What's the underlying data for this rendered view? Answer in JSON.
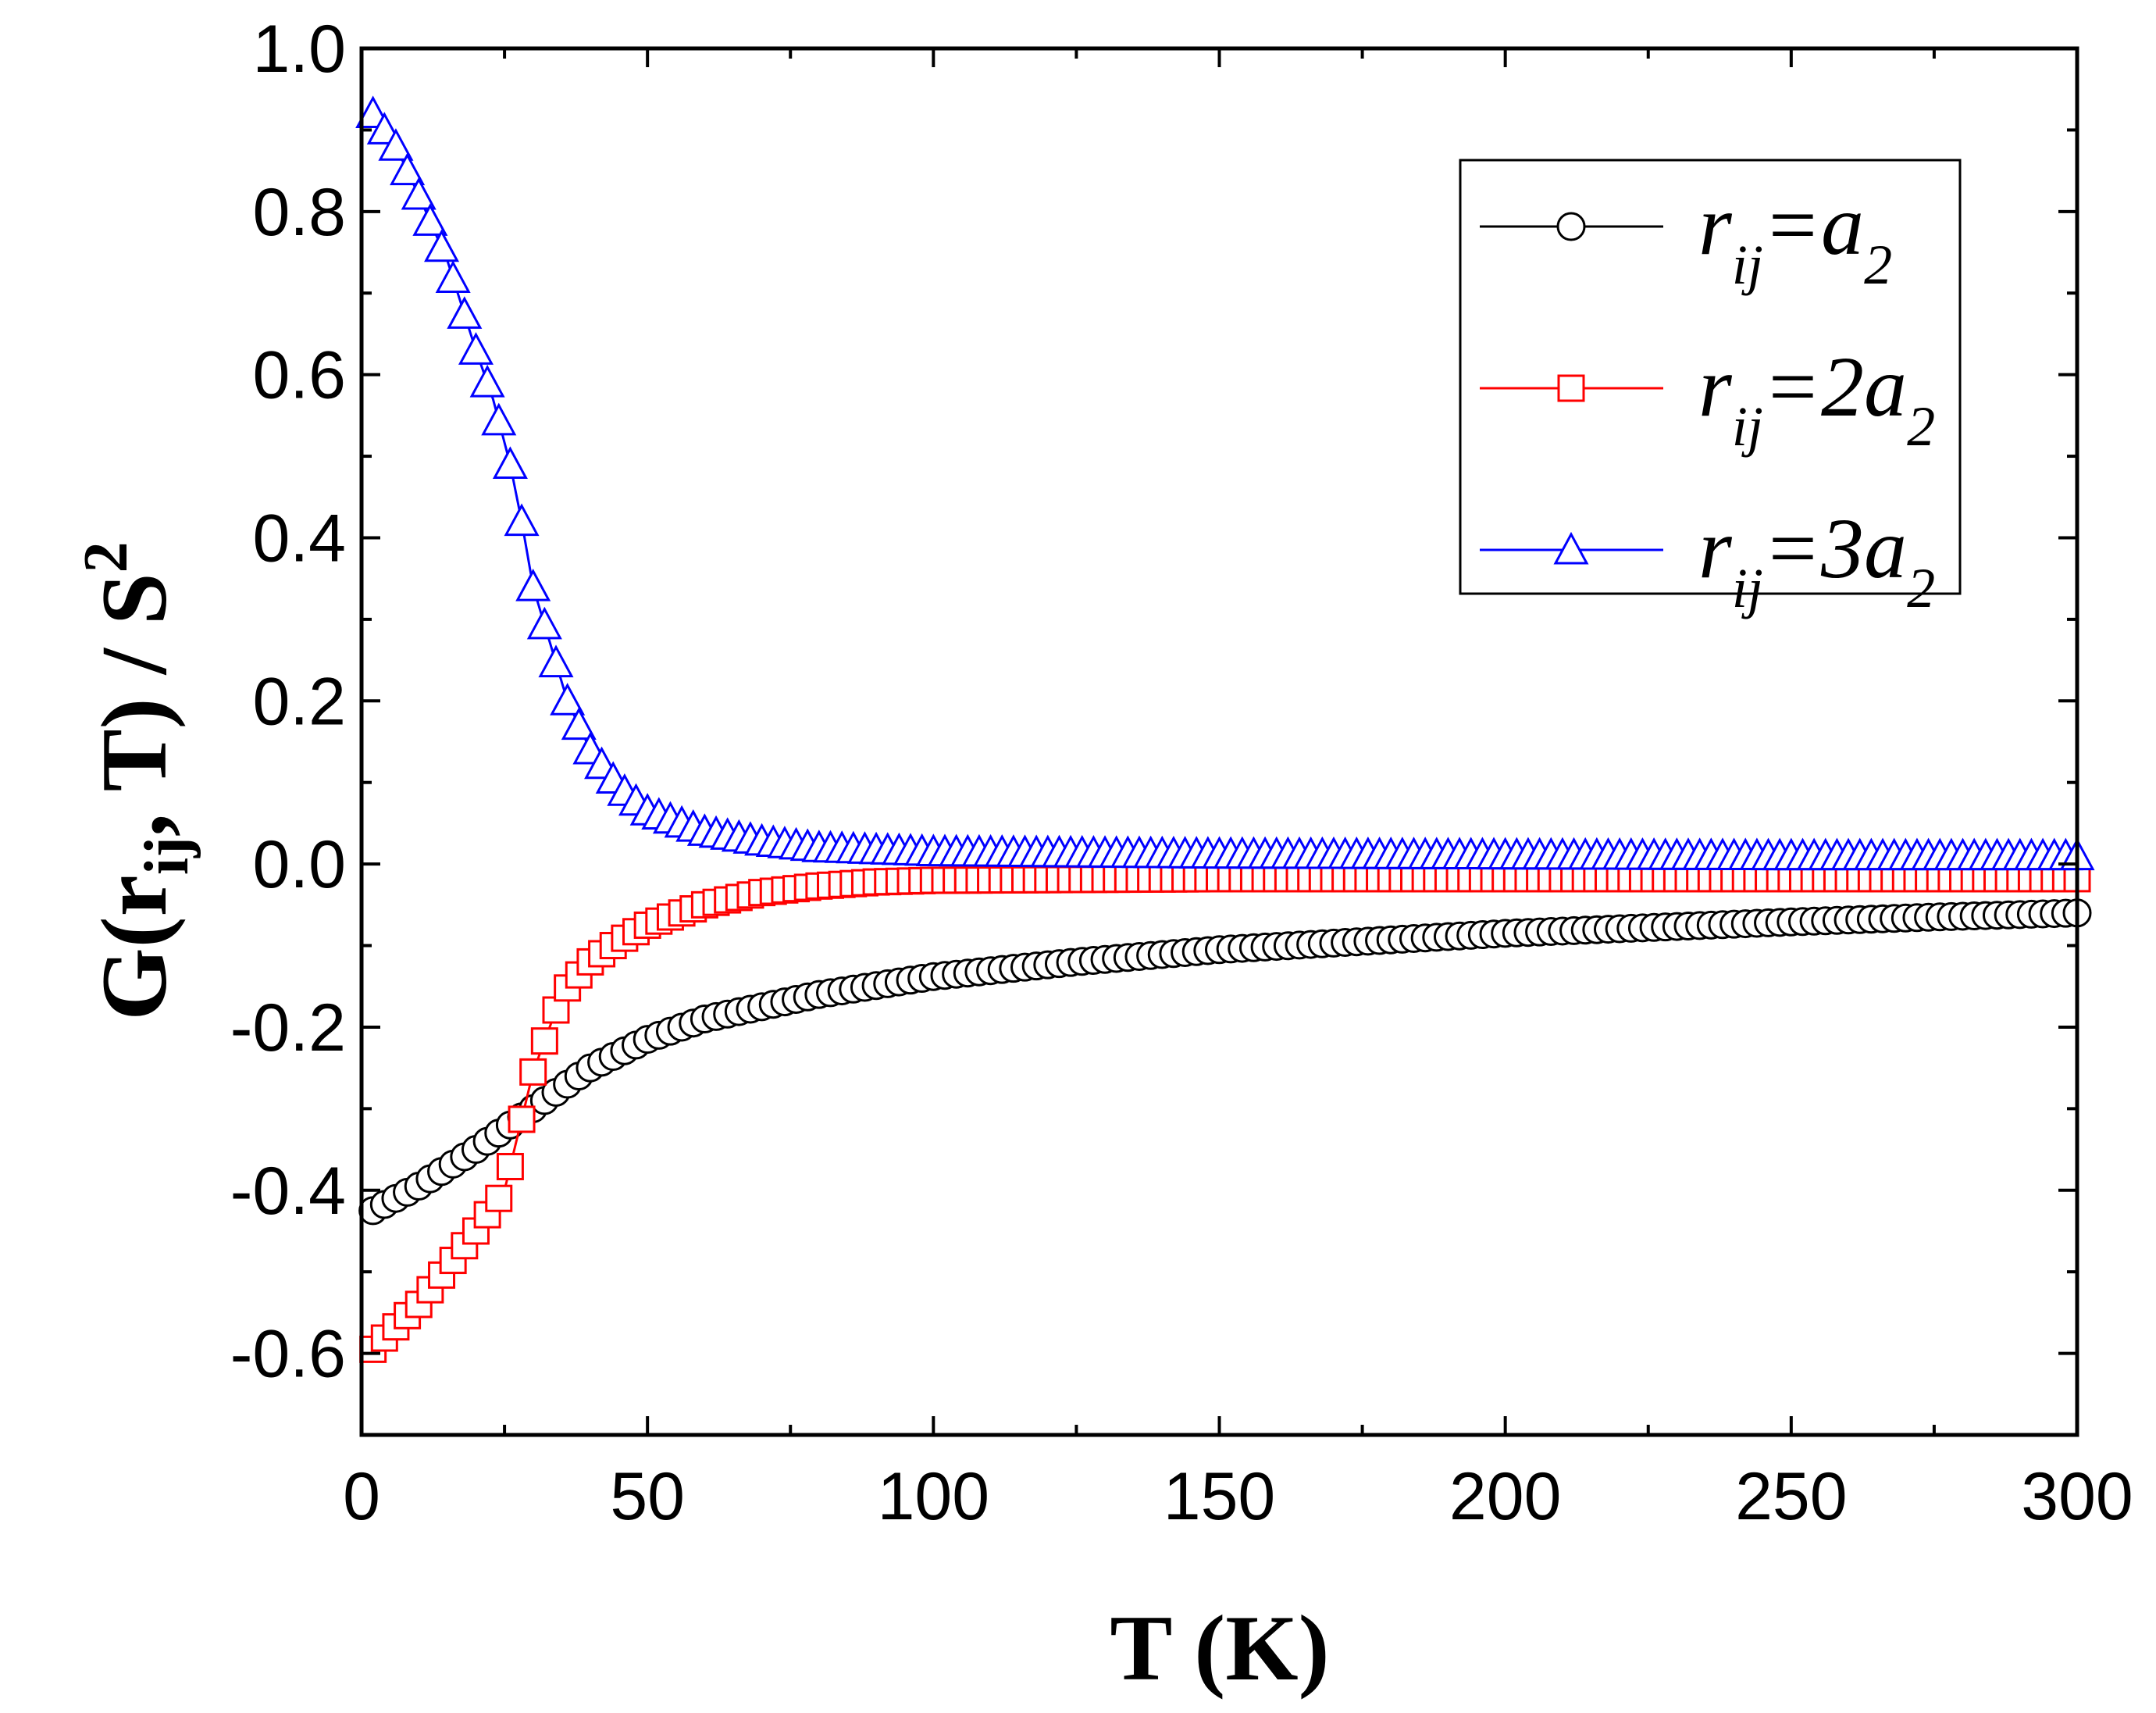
{
  "chart_data": {
    "type": "line",
    "title": "",
    "xlabel": "T (K)",
    "ylabel_parts": {
      "prefix": "G(r",
      "subscript": "ij",
      "middle": ", T) / S",
      "superscript": "2"
    },
    "xlim": [
      0,
      300
    ],
    "ylim": [
      -0.7,
      1.0
    ],
    "x_ticks": [
      0,
      50,
      100,
      150,
      200,
      250,
      300
    ],
    "x_tick_labels": [
      "0",
      "50",
      "100",
      "150",
      "200",
      "250",
      "300"
    ],
    "y_ticks": [
      -0.6,
      -0.4,
      -0.2,
      0.0,
      0.2,
      0.4,
      0.6,
      0.8,
      1.0
    ],
    "y_tick_labels": [
      "-0.6",
      "-0.4",
      "-0.2",
      "0.0",
      "0.2",
      "0.4",
      "0.6",
      "0.8",
      "1.0"
    ],
    "grid": false,
    "legend": {
      "position": "top-right"
    },
    "series": [
      {
        "name": "r_ij=a_2",
        "legend_main": "r",
        "legend_sub": "ij",
        "legend_eq": "=a",
        "legend_sub2": "2",
        "color": "#000000",
        "marker": "circle",
        "points": [
          [
            2,
            -0.425
          ],
          [
            10,
            -0.395
          ],
          [
            20,
            -0.35
          ],
          [
            30,
            -0.3
          ],
          [
            40,
            -0.25
          ],
          [
            50,
            -0.215
          ],
          [
            60,
            -0.19
          ],
          [
            80,
            -0.16
          ],
          [
            100,
            -0.138
          ],
          [
            125,
            -0.12
          ],
          [
            150,
            -0.105
          ],
          [
            175,
            -0.095
          ],
          [
            200,
            -0.085
          ],
          [
            225,
            -0.078
          ],
          [
            250,
            -0.071
          ],
          [
            275,
            -0.065
          ],
          [
            300,
            -0.06
          ]
        ]
      },
      {
        "name": "r_ij=2a_2",
        "legend_main": "r",
        "legend_sub": "ij",
        "legend_eq": "=2a",
        "legend_sub2": "2",
        "color": "#ff0000",
        "marker": "square",
        "points": [
          [
            2,
            -0.595
          ],
          [
            10,
            -0.54
          ],
          [
            20,
            -0.45
          ],
          [
            25,
            -0.4
          ],
          [
            30,
            -0.255
          ],
          [
            35,
            -0.16
          ],
          [
            40,
            -0.12
          ],
          [
            45,
            -0.095
          ],
          [
            50,
            -0.075
          ],
          [
            60,
            -0.05
          ],
          [
            70,
            -0.035
          ],
          [
            80,
            -0.027
          ],
          [
            90,
            -0.022
          ],
          [
            100,
            -0.02
          ],
          [
            150,
            -0.018
          ],
          [
            200,
            -0.018
          ],
          [
            250,
            -0.018
          ],
          [
            300,
            -0.018
          ]
        ]
      },
      {
        "name": "r_ij=3a_2",
        "legend_main": "r",
        "legend_sub": "ij",
        "legend_eq": "=3a",
        "legend_sub2": "2",
        "color": "#0000ff",
        "marker": "triangle",
        "points": [
          [
            2,
            0.92
          ],
          [
            6,
            0.88
          ],
          [
            10,
            0.82
          ],
          [
            15,
            0.74
          ],
          [
            20,
            0.63
          ],
          [
            23,
            0.57
          ],
          [
            26,
            0.49
          ],
          [
            28,
            0.42
          ],
          [
            30,
            0.34
          ],
          [
            33,
            0.27
          ],
          [
            36,
            0.2
          ],
          [
            40,
            0.14
          ],
          [
            45,
            0.095
          ],
          [
            50,
            0.065
          ],
          [
            60,
            0.04
          ],
          [
            70,
            0.028
          ],
          [
            80,
            0.02
          ],
          [
            100,
            0.015
          ],
          [
            150,
            0.012
          ],
          [
            200,
            0.011
          ],
          [
            250,
            0.01
          ],
          [
            300,
            0.01
          ]
        ]
      }
    ]
  }
}
